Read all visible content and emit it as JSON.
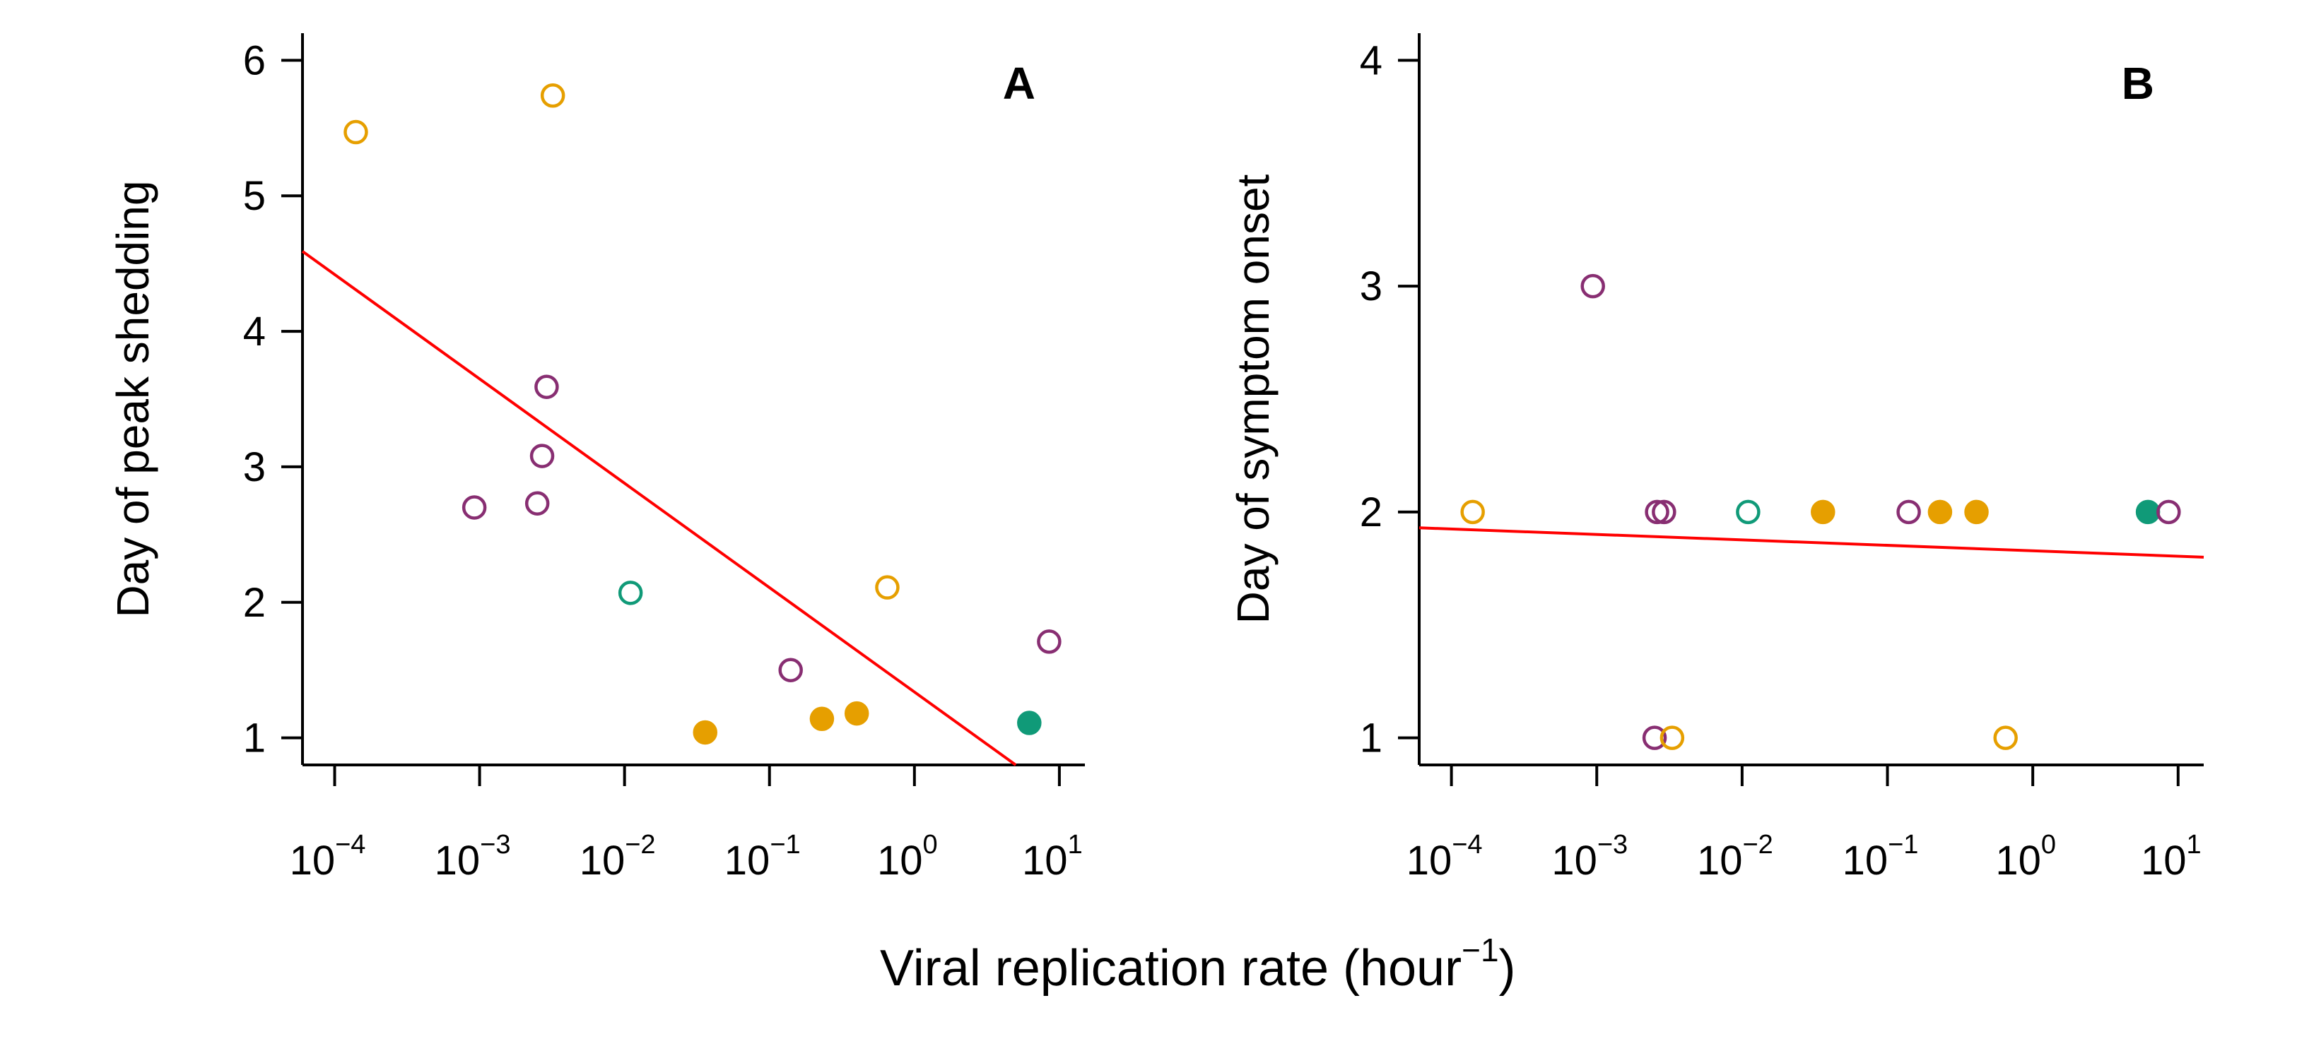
{
  "figure": {
    "xlabel": "Viral replication rate (hour",
    "xlabel_exp": "−1",
    "xlabel_close": ")"
  },
  "colors": {
    "orange": "#E69F00",
    "purple": "#882E72",
    "green": "#109A78",
    "fit_line": "#FF0000",
    "axis": "#000000"
  },
  "chart_data": [
    {
      "type": "scatter",
      "panel_label": "A",
      "xlabel": "Viral replication rate (hour−1)",
      "ylabel": "Day of peak shedding",
      "xscale": "log10",
      "xlim": [
        6e-05,
        15
      ],
      "ylim": [
        0.8,
        6.2
      ],
      "x_ticks": [
        0.0001,
        0.001,
        0.01,
        0.1,
        1,
        10
      ],
      "x_tick_labels": [
        {
          "base": "10",
          "exp": "−4"
        },
        {
          "base": "10",
          "exp": "−3"
        },
        {
          "base": "10",
          "exp": "−2"
        },
        {
          "base": "10",
          "exp": "−1"
        },
        {
          "base": "10",
          "exp": "0"
        },
        {
          "base": "10",
          "exp": "1"
        }
      ],
      "y_ticks": [
        1,
        2,
        3,
        4,
        5,
        6
      ],
      "y_tick_labels": [
        "1",
        "2",
        "3",
        "4",
        "5",
        "6"
      ],
      "points": [
        {
          "x": 0.00014,
          "y": 5.47,
          "color": "orange",
          "filled": false
        },
        {
          "x": 0.0032,
          "y": 5.74,
          "color": "orange",
          "filled": false
        },
        {
          "x": 0.00092,
          "y": 2.7,
          "color": "purple",
          "filled": false
        },
        {
          "x": 0.0025,
          "y": 2.73,
          "color": "purple",
          "filled": false
        },
        {
          "x": 0.0027,
          "y": 3.08,
          "color": "purple",
          "filled": false
        },
        {
          "x": 0.0029,
          "y": 3.59,
          "color": "purple",
          "filled": false
        },
        {
          "x": 0.011,
          "y": 2.07,
          "color": "green",
          "filled": false
        },
        {
          "x": 0.036,
          "y": 1.04,
          "color": "orange",
          "filled": true
        },
        {
          "x": 0.14,
          "y": 1.5,
          "color": "purple",
          "filled": false
        },
        {
          "x": 0.23,
          "y": 1.14,
          "color": "orange",
          "filled": true
        },
        {
          "x": 0.4,
          "y": 1.18,
          "color": "orange",
          "filled": true
        },
        {
          "x": 0.65,
          "y": 2.11,
          "color": "orange",
          "filled": false
        },
        {
          "x": 6.2,
          "y": 1.11,
          "color": "green",
          "filled": true
        },
        {
          "x": 8.5,
          "y": 1.71,
          "color": "purple",
          "filled": false
        }
      ],
      "fit_line": {
        "x": [
          6e-05,
          5.0
        ],
        "y": [
          4.59,
          0.8
        ]
      }
    },
    {
      "type": "scatter",
      "panel_label": "B",
      "xlabel": "Viral replication rate (hour−1)",
      "ylabel": "Day of symptom onset",
      "xscale": "log10",
      "xlim": [
        6e-05,
        15
      ],
      "ylim": [
        0.88,
        4.12
      ],
      "x_ticks": [
        0.0001,
        0.001,
        0.01,
        0.1,
        1,
        10
      ],
      "x_tick_labels": [
        {
          "base": "10",
          "exp": "−4"
        },
        {
          "base": "10",
          "exp": "−3"
        },
        {
          "base": "10",
          "exp": "−2"
        },
        {
          "base": "10",
          "exp": "−1"
        },
        {
          "base": "10",
          "exp": "0"
        },
        {
          "base": "10",
          "exp": "1"
        }
      ],
      "y_ticks": [
        1,
        2,
        3,
        4
      ],
      "y_tick_labels": [
        "1",
        "2",
        "3",
        "4"
      ],
      "points": [
        {
          "x": 0.00014,
          "y": 2.0,
          "color": "orange",
          "filled": false
        },
        {
          "x": 0.00094,
          "y": 3.0,
          "color": "purple",
          "filled": false
        },
        {
          "x": 0.0025,
          "y": 1.0,
          "color": "purple",
          "filled": false
        },
        {
          "x": 0.0033,
          "y": 1.0,
          "color": "orange",
          "filled": false
        },
        {
          "x": 0.0026,
          "y": 2.0,
          "color": "purple",
          "filled": false
        },
        {
          "x": 0.0029,
          "y": 2.0,
          "color": "purple",
          "filled": false
        },
        {
          "x": 0.011,
          "y": 2.0,
          "color": "green",
          "filled": false
        },
        {
          "x": 0.036,
          "y": 2.0,
          "color": "orange",
          "filled": true
        },
        {
          "x": 0.14,
          "y": 2.0,
          "color": "purple",
          "filled": false
        },
        {
          "x": 0.23,
          "y": 2.0,
          "color": "orange",
          "filled": true
        },
        {
          "x": 0.41,
          "y": 2.0,
          "color": "orange",
          "filled": true
        },
        {
          "x": 0.65,
          "y": 1.0,
          "color": "orange",
          "filled": false
        },
        {
          "x": 6.2,
          "y": 2.0,
          "color": "green",
          "filled": true
        },
        {
          "x": 8.6,
          "y": 2.0,
          "color": "purple",
          "filled": false
        }
      ],
      "fit_line": {
        "x": [
          6e-05,
          15
        ],
        "y": [
          1.93,
          1.8
        ]
      }
    }
  ]
}
